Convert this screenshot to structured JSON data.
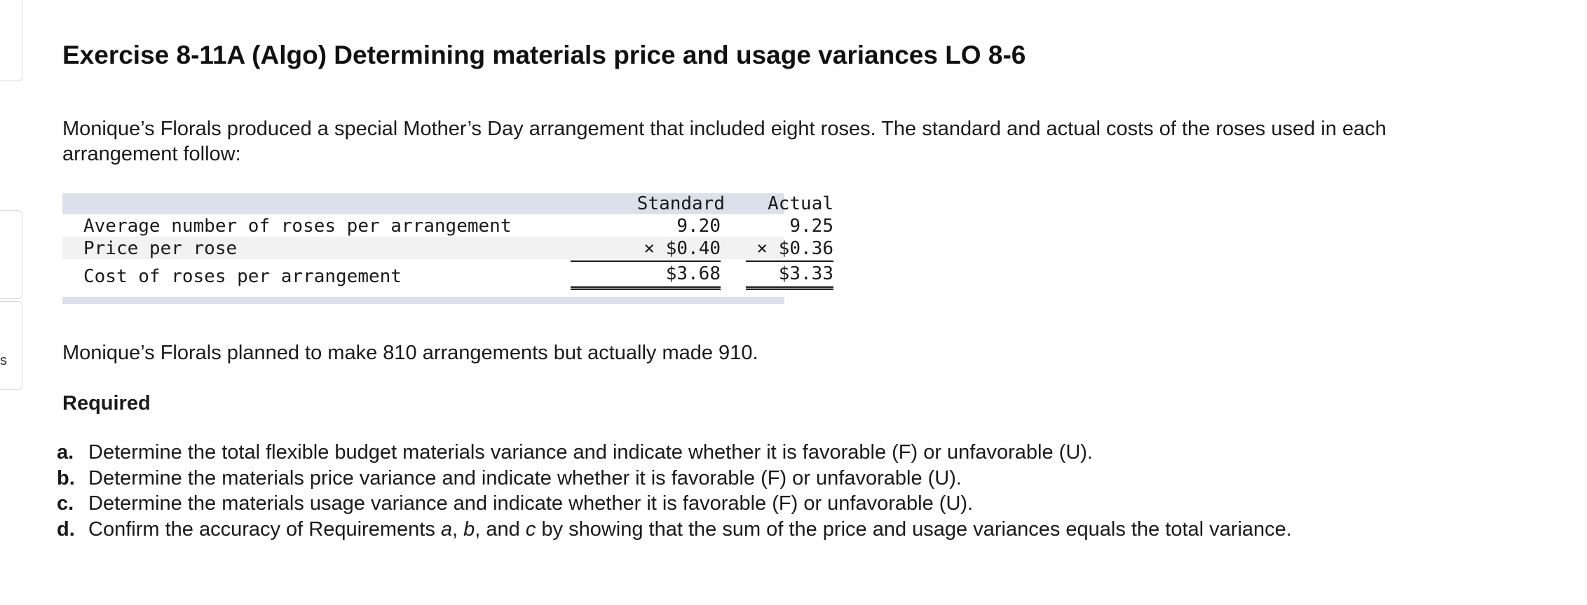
{
  "title": "Exercise 8-11A (Algo) Determining materials price and usage variances LO 8-6",
  "intro": "Monique’s Florals produced a special Mother’s Day arrangement that included eight roses. The standard and actual costs of the roses used in each arrangement follow:",
  "left_rail": {
    "letter": "s"
  },
  "cost_table": {
    "headers": {
      "standard": "Standard",
      "actual": "Actual"
    },
    "rows": [
      {
        "label": "Average number of roses per arrangement",
        "standard": "9.20",
        "actual": "9.25"
      },
      {
        "label": "Price per rose",
        "standard": "× $0.40",
        "actual": "× $0.36"
      },
      {
        "label": "Cost of roses per arrangement",
        "standard": "$3.68",
        "actual": "$3.33"
      }
    ]
  },
  "plan_text": "Monique’s Florals planned to make 810 arrangements but actually made 910.",
  "required_heading": "Required",
  "requirements": [
    {
      "letter": "a.",
      "text": "Determine the total flexible budget materials variance and indicate whether it is favorable (F) or unfavorable (U)."
    },
    {
      "letter": "b.",
      "text": "Determine the materials price variance and indicate whether it is favorable (F) or unfavorable (U)."
    },
    {
      "letter": "c.",
      "text": "Determine the materials usage variance and indicate whether it is favorable (F) or unfavorable (U)."
    },
    {
      "letter": "d.",
      "text_before": "Confirm the accuracy of Requirements ",
      "italic_a": "a",
      "sep1": ", ",
      "italic_b": "b",
      "sep2": ", and ",
      "italic_c": "c",
      "text_after": " by showing that the sum of the price and usage variances equals the total variance."
    }
  ]
}
